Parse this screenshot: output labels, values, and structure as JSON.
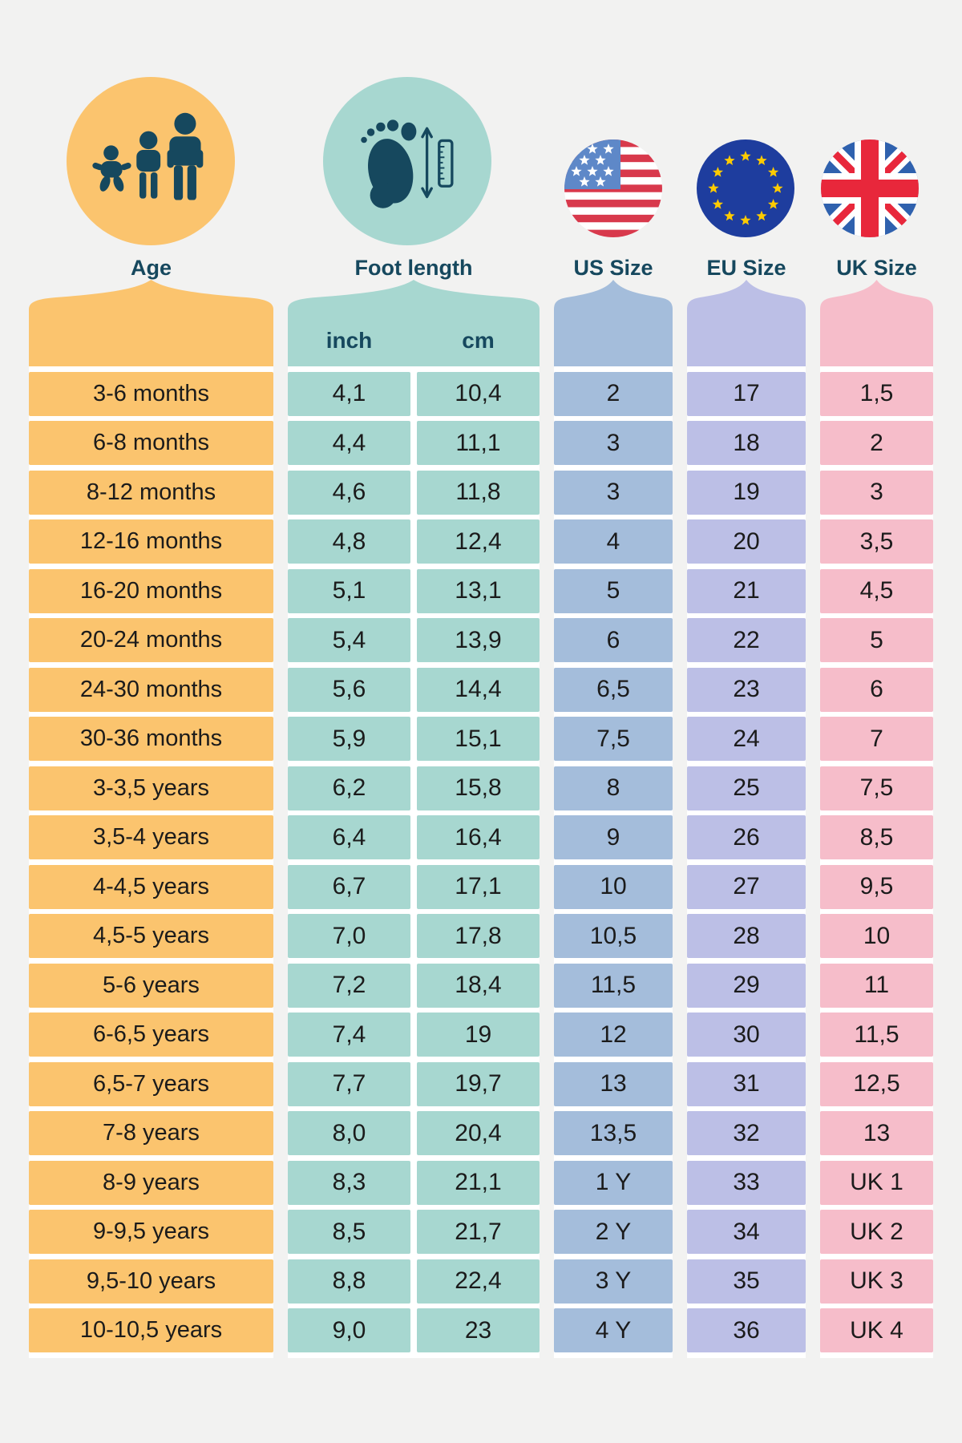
{
  "chart_data": {
    "type": "table",
    "columns": [
      "Age",
      "Foot length (inch)",
      "Foot length (cm)",
      "US Size",
      "EU Size",
      "UK Size"
    ],
    "rows": [
      [
        "3-6 months",
        "4,1",
        "10,4",
        "2",
        "17",
        "1,5"
      ],
      [
        "6-8 months",
        "4,4",
        "11,1",
        "3",
        "18",
        "2"
      ],
      [
        "8-12 months",
        "4,6",
        "11,8",
        "3",
        "19",
        "3"
      ],
      [
        "12-16 months",
        "4,8",
        "12,4",
        "4",
        "20",
        "3,5"
      ],
      [
        "16-20 months",
        "5,1",
        "13,1",
        "5",
        "21",
        "4,5"
      ],
      [
        "20-24 months",
        "5,4",
        "13,9",
        "6",
        "22",
        "5"
      ],
      [
        "24-30 months",
        "5,6",
        "14,4",
        "6,5",
        "23",
        "6"
      ],
      [
        "30-36 months",
        "5,9",
        "15,1",
        "7,5",
        "24",
        "7"
      ],
      [
        "3-3,5 years",
        "6,2",
        "15,8",
        "8",
        "25",
        "7,5"
      ],
      [
        "3,5-4 years",
        "6,4",
        "16,4",
        "9",
        "26",
        "8,5"
      ],
      [
        "4-4,5 years",
        "6,7",
        "17,1",
        "10",
        "27",
        "9,5"
      ],
      [
        "4,5-5 years",
        "7,0",
        "17,8",
        "10,5",
        "28",
        "10"
      ],
      [
        "5-6 years",
        "7,2",
        "18,4",
        "11,5",
        "29",
        "11"
      ],
      [
        "6-6,5 years",
        "7,4",
        "19",
        "12",
        "30",
        "11,5"
      ],
      [
        "6,5-7 years",
        "7,7",
        "19,7",
        "13",
        "31",
        "12,5"
      ],
      [
        "7-8 years",
        "8,0",
        "20,4",
        "13,5",
        "32",
        "13"
      ],
      [
        "8-9 years",
        "8,3",
        "21,1",
        "1 Y",
        "33",
        "UK 1"
      ],
      [
        "9-9,5 years",
        "8,5",
        "21,7",
        "2 Y",
        "34",
        "UK 2"
      ],
      [
        "9,5-10 years",
        "8,8",
        "22,4",
        "3 Y",
        "35",
        "UK 3"
      ],
      [
        "10-10,5 years",
        "9,0",
        "23",
        "4 Y",
        "36",
        "UK 4"
      ]
    ]
  },
  "header": {
    "age_label": "Age",
    "foot_label": "Foot length",
    "us_label": "US Size",
    "eu_label": "EU Size",
    "uk_label": "UK Size",
    "inch_label": "inch",
    "cm_label": "cm"
  },
  "icons": {
    "age": "family-icon",
    "foot": "foot-measurement-icon",
    "us": "us-flag-icon",
    "eu": "eu-flag-icon",
    "uk": "uk-flag-icon"
  },
  "colors": {
    "background": "#F2F2F1",
    "row_gap": "#FFFFFF",
    "dark": "#16485E",
    "cell_text": "#1B1B1B",
    "age": "#FBC46E",
    "foot": "#A7D7D0",
    "us": "#A4BDDB",
    "eu": "#BCBFE6",
    "uk": "#F6BDCA",
    "us_flag_blue": "#5E88C8",
    "us_flag_red": "#D8394C",
    "eu_flag_blue": "#1E3D9E",
    "eu_flag_star": "#FFCB00",
    "uk_flag_blue": "#2F61AE",
    "uk_flag_red": "#E8273B"
  }
}
